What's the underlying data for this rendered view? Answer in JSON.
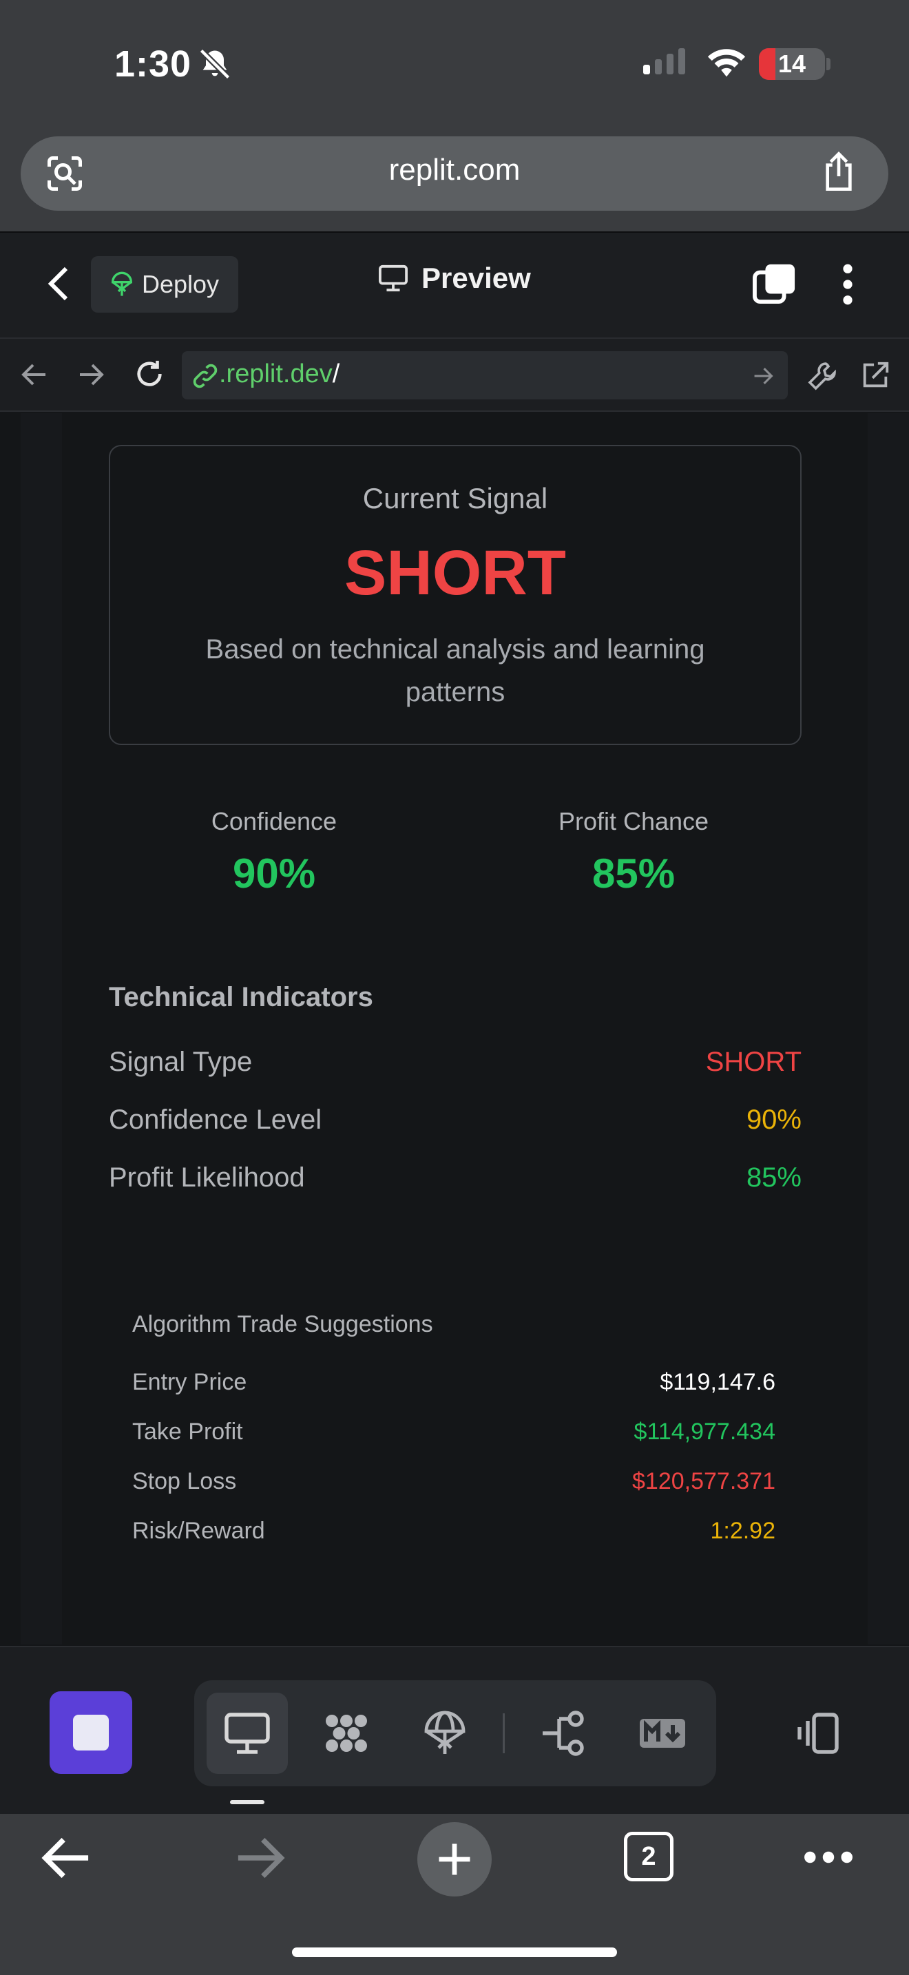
{
  "status_bar": {
    "time": "1:30",
    "battery": "14",
    "battery_level": 0.14,
    "colors": {
      "battery_low": "#e6353a"
    }
  },
  "browser": {
    "url": "replit.com",
    "tab_count": "2"
  },
  "replit_header": {
    "deploy_label": "Deploy",
    "preview_label": "Preview"
  },
  "replit_nav": {
    "url_prefix": ".replit.dev",
    "url_suffix": "/"
  },
  "signal_card": {
    "heading": "Current Signal",
    "signal": "SHORT",
    "description": "Based on technical analysis and learning patterns"
  },
  "stats": {
    "confidence_label": "Confidence",
    "confidence_value": "90%",
    "profit_label": "Profit Chance",
    "profit_value": "85%"
  },
  "technical_indicators": {
    "heading": "Technical Indicators",
    "rows": [
      {
        "label": "Signal Type",
        "value": "SHORT",
        "color": "#ef4444"
      },
      {
        "label": "Confidence Level",
        "value": "90%",
        "color": "#eab308"
      },
      {
        "label": "Profit Likelihood",
        "value": "85%",
        "color": "#22c55e"
      }
    ]
  },
  "trade_suggestions": {
    "heading": "Algorithm Trade Suggestions",
    "rows": [
      {
        "label": "Entry Price",
        "value": "$119,147.6",
        "color": "#ffffff"
      },
      {
        "label": "Take Profit",
        "value": "$114,977.434",
        "color": "#22c55e"
      },
      {
        "label": "Stop Loss",
        "value": "$120,577.371",
        "color": "#ef4444"
      },
      {
        "label": "Risk/Reward",
        "value": "1:2.92",
        "color": "#eab308"
      }
    ]
  },
  "toolbar": {
    "icons": [
      "stop-icon",
      "monitor-icon",
      "packages-icon",
      "deploy-icon",
      "git-icon",
      "markdown-icon",
      "layout-icon"
    ],
    "colors": {
      "stop_button": "#5b3fd8"
    }
  }
}
